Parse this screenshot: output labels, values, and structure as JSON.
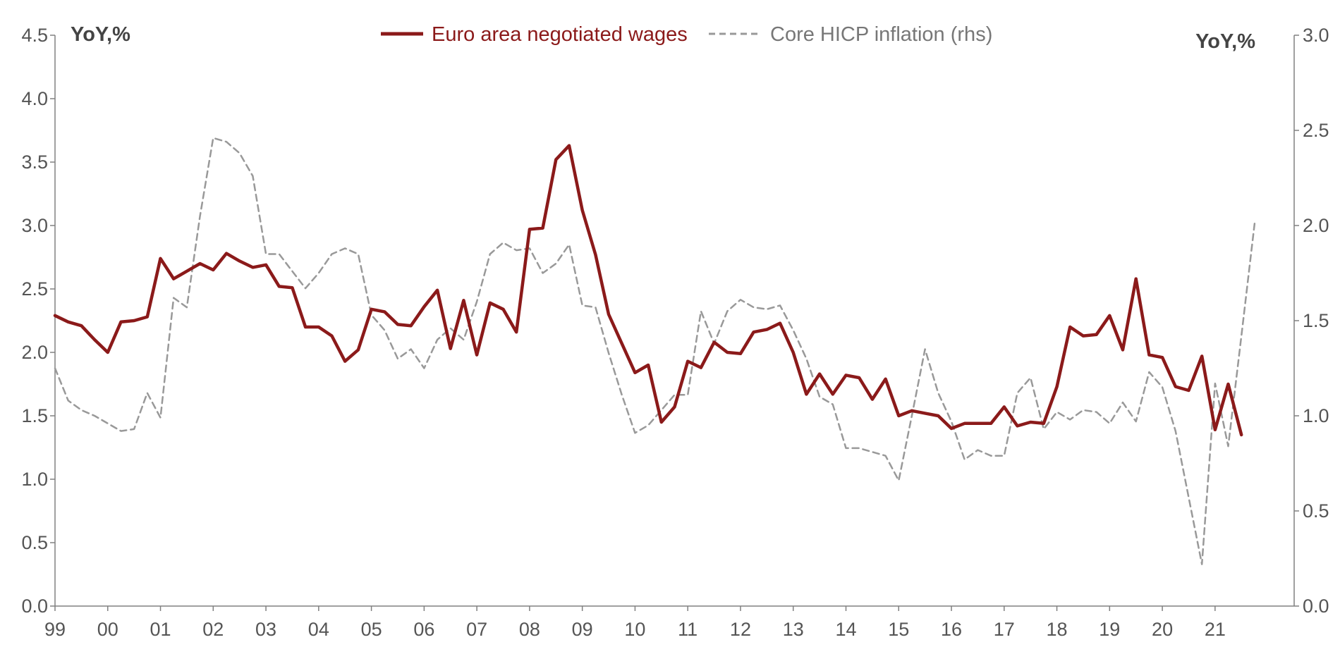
{
  "chart_data": {
    "type": "line",
    "title": "",
    "xlabel": "",
    "x_tick_labels": [
      "99",
      "00",
      "01",
      "02",
      "03",
      "04",
      "05",
      "06",
      "07",
      "08",
      "09",
      "10",
      "11",
      "12",
      "13",
      "14",
      "15",
      "16",
      "17",
      "18",
      "19",
      "20",
      "21"
    ],
    "x_range": [
      1999.0,
      2022.5
    ],
    "left_axis": {
      "unit_label": "YoY,%",
      "range": [
        0,
        4.5
      ],
      "ticks": [
        "0.0",
        "0.5",
        "1.0",
        "1.5",
        "2.0",
        "2.5",
        "3.0",
        "3.5",
        "4.0",
        "4.5"
      ]
    },
    "right_axis": {
      "unit_label": "YoY,%",
      "range": [
        0,
        3.0
      ],
      "ticks": [
        "0.0",
        "0.5",
        "1.0",
        "1.5",
        "2.0",
        "2.5",
        "3.0"
      ]
    },
    "legend_position": "top-center",
    "grid": false,
    "series": [
      {
        "name": "Euro area negotiated wages",
        "axis": "left",
        "color": "#8B1A1A",
        "style": "solid",
        "points": [
          [
            1999.0,
            2.29
          ],
          [
            1999.25,
            2.24
          ],
          [
            1999.5,
            2.21
          ],
          [
            1999.75,
            2.1
          ],
          [
            2000.0,
            2.0
          ],
          [
            2000.25,
            2.24
          ],
          [
            2000.5,
            2.25
          ],
          [
            2000.75,
            2.28
          ],
          [
            2001.0,
            2.74
          ],
          [
            2001.25,
            2.58
          ],
          [
            2001.5,
            2.64
          ],
          [
            2001.75,
            2.7
          ],
          [
            2002.0,
            2.65
          ],
          [
            2002.25,
            2.78
          ],
          [
            2002.5,
            2.72
          ],
          [
            2002.75,
            2.67
          ],
          [
            2003.0,
            2.69
          ],
          [
            2003.25,
            2.52
          ],
          [
            2003.5,
            2.51
          ],
          [
            2003.75,
            2.2
          ],
          [
            2004.0,
            2.2
          ],
          [
            2004.25,
            2.13
          ],
          [
            2004.5,
            1.93
          ],
          [
            2004.75,
            2.02
          ],
          [
            2005.0,
            2.34
          ],
          [
            2005.25,
            2.32
          ],
          [
            2005.5,
            2.22
          ],
          [
            2005.75,
            2.21
          ],
          [
            2006.0,
            2.36
          ],
          [
            2006.25,
            2.49
          ],
          [
            2006.5,
            2.03
          ],
          [
            2006.75,
            2.41
          ],
          [
            2007.0,
            1.98
          ],
          [
            2007.25,
            2.39
          ],
          [
            2007.5,
            2.34
          ],
          [
            2007.75,
            2.16
          ],
          [
            2008.0,
            2.97
          ],
          [
            2008.25,
            2.98
          ],
          [
            2008.5,
            3.52
          ],
          [
            2008.75,
            3.63
          ],
          [
            2009.0,
            3.12
          ],
          [
            2009.25,
            2.77
          ],
          [
            2009.5,
            2.3
          ],
          [
            2009.75,
            2.07
          ],
          [
            2010.0,
            1.84
          ],
          [
            2010.25,
            1.9
          ],
          [
            2010.5,
            1.45
          ],
          [
            2010.75,
            1.57
          ],
          [
            2011.0,
            1.93
          ],
          [
            2011.25,
            1.88
          ],
          [
            2011.5,
            2.08
          ],
          [
            2011.75,
            2.0
          ],
          [
            2012.0,
            1.99
          ],
          [
            2012.25,
            2.16
          ],
          [
            2012.5,
            2.18
          ],
          [
            2012.75,
            2.23
          ],
          [
            2013.0,
            2.0
          ],
          [
            2013.25,
            1.67
          ],
          [
            2013.5,
            1.83
          ],
          [
            2013.75,
            1.67
          ],
          [
            2014.0,
            1.82
          ],
          [
            2014.25,
            1.8
          ],
          [
            2014.5,
            1.63
          ],
          [
            2014.75,
            1.79
          ],
          [
            2015.0,
            1.5
          ],
          [
            2015.25,
            1.54
          ],
          [
            2015.5,
            1.52
          ],
          [
            2015.75,
            1.5
          ],
          [
            2016.0,
            1.4
          ],
          [
            2016.25,
            1.44
          ],
          [
            2016.5,
            1.44
          ],
          [
            2016.75,
            1.44
          ],
          [
            2017.0,
            1.57
          ],
          [
            2017.25,
            1.42
          ],
          [
            2017.5,
            1.45
          ],
          [
            2017.75,
            1.44
          ],
          [
            2018.0,
            1.73
          ],
          [
            2018.25,
            2.2
          ],
          [
            2018.5,
            2.13
          ],
          [
            2018.75,
            2.14
          ],
          [
            2019.0,
            2.29
          ],
          [
            2019.25,
            2.02
          ],
          [
            2019.5,
            2.58
          ],
          [
            2019.75,
            1.98
          ],
          [
            2020.0,
            1.96
          ],
          [
            2020.25,
            1.73
          ],
          [
            2020.5,
            1.7
          ],
          [
            2020.75,
            1.97
          ],
          [
            2021.0,
            1.39
          ],
          [
            2021.25,
            1.75
          ],
          [
            2021.5,
            1.35
          ]
        ]
      },
      {
        "name": "Core HICP inflation (rhs)",
        "axis": "right",
        "color": "#999999",
        "style": "dashed",
        "points": [
          [
            1999.0,
            1.25
          ],
          [
            1999.25,
            1.08
          ],
          [
            1999.5,
            1.03
          ],
          [
            1999.75,
            1.0
          ],
          [
            2000.0,
            0.96
          ],
          [
            2000.25,
            0.92
          ],
          [
            2000.5,
            0.93
          ],
          [
            2000.75,
            1.12
          ],
          [
            2001.0,
            0.99
          ],
          [
            2001.25,
            1.62
          ],
          [
            2001.5,
            1.57
          ],
          [
            2001.75,
            2.05
          ],
          [
            2002.0,
            2.46
          ],
          [
            2002.25,
            2.44
          ],
          [
            2002.5,
            2.38
          ],
          [
            2002.75,
            2.26
          ],
          [
            2003.0,
            1.85
          ],
          [
            2003.25,
            1.85
          ],
          [
            2003.5,
            1.76
          ],
          [
            2003.75,
            1.67
          ],
          [
            2004.0,
            1.75
          ],
          [
            2004.25,
            1.85
          ],
          [
            2004.5,
            1.88
          ],
          [
            2004.75,
            1.85
          ],
          [
            2005.0,
            1.53
          ],
          [
            2005.25,
            1.45
          ],
          [
            2005.5,
            1.3
          ],
          [
            2005.75,
            1.35
          ],
          [
            2006.0,
            1.25
          ],
          [
            2006.25,
            1.4
          ],
          [
            2006.5,
            1.46
          ],
          [
            2006.75,
            1.4
          ],
          [
            2007.0,
            1.6
          ],
          [
            2007.25,
            1.85
          ],
          [
            2007.5,
            1.91
          ],
          [
            2007.75,
            1.87
          ],
          [
            2008.0,
            1.88
          ],
          [
            2008.25,
            1.75
          ],
          [
            2008.5,
            1.8
          ],
          [
            2008.75,
            1.9
          ],
          [
            2009.0,
            1.58
          ],
          [
            2009.25,
            1.57
          ],
          [
            2009.5,
            1.33
          ],
          [
            2009.75,
            1.11
          ],
          [
            2010.0,
            0.91
          ],
          [
            2010.25,
            0.95
          ],
          [
            2010.5,
            1.03
          ],
          [
            2010.75,
            1.11
          ],
          [
            2011.0,
            1.11
          ],
          [
            2011.25,
            1.55
          ],
          [
            2011.5,
            1.38
          ],
          [
            2011.75,
            1.55
          ],
          [
            2012.0,
            1.61
          ],
          [
            2012.25,
            1.57
          ],
          [
            2012.5,
            1.56
          ],
          [
            2012.75,
            1.58
          ],
          [
            2013.0,
            1.45
          ],
          [
            2013.25,
            1.3
          ],
          [
            2013.5,
            1.1
          ],
          [
            2013.75,
            1.06
          ],
          [
            2014.0,
            0.83
          ],
          [
            2014.25,
            0.83
          ],
          [
            2014.5,
            0.81
          ],
          [
            2014.75,
            0.79
          ],
          [
            2015.0,
            0.66
          ],
          [
            2015.25,
            1.0
          ],
          [
            2015.5,
            1.35
          ],
          [
            2015.75,
            1.12
          ],
          [
            2016.0,
            0.97
          ],
          [
            2016.25,
            0.77
          ],
          [
            2016.5,
            0.82
          ],
          [
            2016.75,
            0.79
          ],
          [
            2017.0,
            0.79
          ],
          [
            2017.25,
            1.12
          ],
          [
            2017.5,
            1.2
          ],
          [
            2017.75,
            0.93
          ],
          [
            2018.0,
            1.02
          ],
          [
            2018.25,
            0.98
          ],
          [
            2018.5,
            1.03
          ],
          [
            2018.75,
            1.02
          ],
          [
            2019.0,
            0.96
          ],
          [
            2019.25,
            1.07
          ],
          [
            2019.5,
            0.97
          ],
          [
            2019.75,
            1.23
          ],
          [
            2020.0,
            1.15
          ],
          [
            2020.25,
            0.92
          ],
          [
            2020.5,
            0.57
          ],
          [
            2020.75,
            0.22
          ],
          [
            2021.0,
            1.17
          ],
          [
            2021.25,
            0.84
          ],
          [
            2021.5,
            1.42
          ],
          [
            2021.75,
            2.01
          ]
        ]
      }
    ]
  }
}
